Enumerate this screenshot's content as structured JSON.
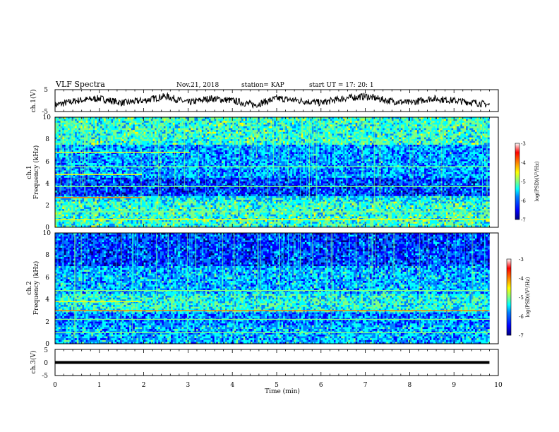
{
  "header": {
    "title": "VLF Spectra",
    "date": "Nov.21, 2018",
    "station": "station= KAP",
    "start_ut": "start  UT =   17: 20: 1"
  },
  "colors": {
    "colormap": [
      "#00007f",
      "#0000ff",
      "#0080ff",
      "#00ffff",
      "#80ff80",
      "#ffff00",
      "#ff8000",
      "#ff0000",
      "#800000"
    ],
    "trace": "#000000"
  },
  "chart_data": [
    {
      "type": "line",
      "panel": "waveform-ch1",
      "ylabel": "ch.1(V)",
      "ylim": [
        -5,
        5
      ],
      "yticks": [
        "5",
        "-5"
      ],
      "xlim": [
        0,
        10
      ],
      "x_unit": "min",
      "series": [
        {
          "x": [
            0,
            0.5,
            1,
            1.5,
            2,
            2.5,
            3,
            3.5,
            4,
            4.5,
            5,
            5.5,
            6,
            6.5,
            7,
            7.5,
            8,
            8.5,
            9,
            9.5,
            9.8
          ],
          "values": [
            -2,
            0,
            1,
            -1,
            0,
            2,
            -1,
            1,
            0,
            -2,
            1,
            0,
            -1,
            1,
            2,
            0,
            -1,
            1,
            0,
            -1,
            -2
          ]
        }
      ]
    },
    {
      "type": "heatmap",
      "panel": "spectrogram-ch1",
      "ylabel": "ch.1\nFrequency (kHz)",
      "ylim": [
        0,
        10
      ],
      "yticks": [
        "0",
        "2",
        "4",
        "6",
        "8",
        "10"
      ],
      "xlim": [
        0,
        10
      ],
      "x_extent": 9.8,
      "colorbar": {
        "label": "log(PSD)(V²/Hz)",
        "range": [
          -7,
          -3
        ],
        "ticks": [
          "-3",
          "-4",
          "-5",
          "-6",
          "-7"
        ]
      }
    },
    {
      "type": "heatmap",
      "panel": "spectrogram-ch2",
      "ylabel": "ch.2\nFrequency (kHz)",
      "ylim": [
        0,
        10
      ],
      "yticks": [
        "0",
        "2",
        "4",
        "6",
        "8",
        "10"
      ],
      "xlim": [
        0,
        10
      ],
      "x_extent": 9.8,
      "colorbar": {
        "label": "log(PSD)(V²/Hz)",
        "range": [
          -7,
          -3
        ],
        "ticks": [
          "-3",
          "-4",
          "-5",
          "-6",
          "-7"
        ]
      }
    },
    {
      "type": "line",
      "panel": "waveform-ch3",
      "ylabel": "ch.3(V)",
      "ylim": [
        -5,
        5
      ],
      "yticks": [
        "5",
        "0",
        "-5"
      ],
      "xlim": [
        0,
        10
      ],
      "xlabel": "Time (min)",
      "xticks": [
        "0",
        "1",
        "2",
        "3",
        "4",
        "5",
        "6",
        "7",
        "8",
        "9",
        "10"
      ],
      "series": [
        {
          "x": [
            0,
            9.8
          ],
          "values": [
            0,
            0
          ]
        }
      ]
    }
  ]
}
